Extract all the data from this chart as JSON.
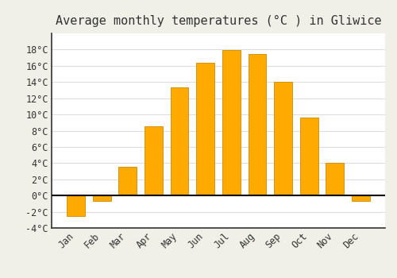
{
  "title": "Average monthly temperatures (°C ) in Gliwice",
  "months": [
    "Jan",
    "Feb",
    "Mar",
    "Apr",
    "May",
    "Jun",
    "Jul",
    "Aug",
    "Sep",
    "Oct",
    "Nov",
    "Dec"
  ],
  "values": [
    -2.5,
    -0.7,
    3.5,
    8.5,
    13.3,
    16.4,
    17.9,
    17.5,
    14.0,
    9.6,
    4.0,
    -0.7
  ],
  "bar_color": "#FFAA00",
  "bar_edge_color": "#CC8800",
  "ylim": [
    -4,
    20
  ],
  "yticks": [
    -4,
    -2,
    0,
    2,
    4,
    6,
    8,
    10,
    12,
    14,
    16,
    18
  ],
  "ytick_labels": [
    "-4°C",
    "-2°C",
    "0°C",
    "2°C",
    "4°C",
    "6°C",
    "8°C",
    "10°C",
    "12°C",
    "14°C",
    "16°C",
    "18°C"
  ],
  "plot_bg_color": "#FFFFFF",
  "fig_bg_color": "#F0F0E8",
  "grid_color": "#DDDDDD",
  "title_fontsize": 11,
  "tick_fontsize": 8.5,
  "zero_line_color": "#000000",
  "left_spine_color": "#333333",
  "bar_width": 0.7
}
